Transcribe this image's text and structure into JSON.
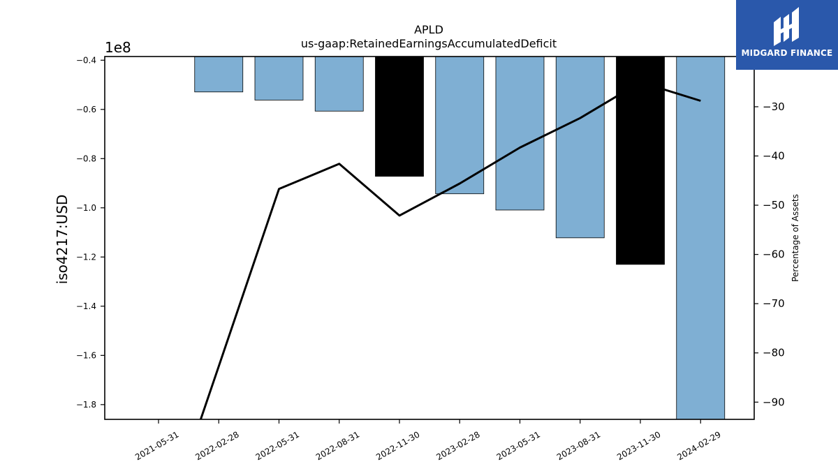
{
  "chart_data": {
    "type": "bar",
    "title": "APLD",
    "subtitle": "us-gaap:RetainedEarningsAccumulatedDeficit",
    "ylabel": "iso4217:USD",
    "y_offset_label": "1e8",
    "y2label": "Percentage of Assets",
    "categories": [
      "2021-05-31",
      "2022-02-28",
      "2022-05-31",
      "2022-08-31",
      "2022-11-30",
      "2023-02-28",
      "2023-05-31",
      "2023-08-31",
      "2023-11-30",
      "2024-02-29"
    ],
    "values": [
      null,
      -0.529,
      -0.562,
      -0.607,
      -0.872,
      -0.943,
      -1.009,
      -1.122,
      -1.23,
      -1.86
    ],
    "highlighted": [
      false,
      false,
      false,
      false,
      true,
      false,
      false,
      false,
      true,
      false
    ],
    "line": {
      "name": "Percentage of Assets",
      "values": [
        null,
        -82.7,
        -46.7,
        -41.6,
        -52.1,
        -45.6,
        -38.3,
        -32.3,
        -25.0,
        -28.8
      ]
    },
    "ylim": [
      -1.86,
      -0.385
    ],
    "y2lim": [
      -93.5,
      -19.8
    ],
    "yticks": [
      -0.4,
      -0.6,
      -0.8,
      -1.0,
      -1.2,
      -1.4,
      -1.6,
      -1.8
    ],
    "ytick_labels": [
      "−0.4",
      "−0.6",
      "−0.8",
      "−1.0",
      "−1.2",
      "−1.4",
      "−1.6",
      "−1.8"
    ],
    "y2ticks": [
      -30,
      -40,
      -50,
      -60,
      -70,
      -80,
      -90
    ],
    "y2tick_labels": [
      "−30",
      "−40",
      "−50",
      "−60",
      "−70",
      "−80",
      "−90"
    ],
    "grid": false,
    "colors": {
      "bar": "#7fafd3",
      "bar_highlight": "#000000",
      "line": "#000000"
    }
  },
  "logo": {
    "text": "MIDGARD FINANCE",
    "background": "#2a58ab"
  }
}
